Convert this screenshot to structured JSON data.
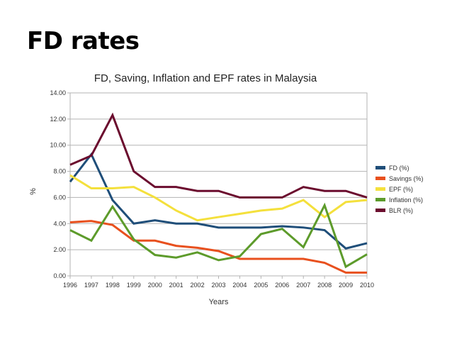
{
  "slide": {
    "title": "FD rates"
  },
  "chart_data": {
    "type": "line",
    "title": "FD, Saving, Inflation and EPF rates in Malaysia",
    "xlabel": "Years",
    "ylabel": "%",
    "ylim": [
      0,
      14
    ],
    "y_step": 2,
    "y_tick_labels": [
      "0.00",
      "2.00",
      "4.00",
      "6.00",
      "8.00",
      "10.00",
      "12.00",
      "14.00"
    ],
    "grid": true,
    "legend_position": "right",
    "categories": [
      "1996",
      "1997",
      "1998",
      "1999",
      "2000",
      "2001",
      "2002",
      "2003",
      "2004",
      "2005",
      "2006",
      "2007",
      "2008",
      "2009",
      "2010"
    ],
    "series": [
      {
        "name": "FD (%)",
        "color": "#1f4e79",
        "values": [
          7.2,
          9.3,
          5.8,
          4.0,
          4.25,
          4.0,
          4.0,
          3.7,
          3.7,
          3.7,
          3.8,
          3.7,
          3.5,
          2.1,
          2.5
        ]
      },
      {
        "name": "Savings (%)",
        "color": "#e8501e",
        "values": [
          4.1,
          4.2,
          3.9,
          2.7,
          2.7,
          2.3,
          2.15,
          1.9,
          1.3,
          1.3,
          1.3,
          1.3,
          1.0,
          0.25,
          0.25
        ]
      },
      {
        "name": "EPF (%)",
        "color": "#f4e03c",
        "values": [
          7.7,
          6.7,
          6.7,
          6.8,
          6.0,
          5.0,
          4.25,
          4.5,
          4.75,
          5.0,
          5.15,
          5.8,
          4.5,
          5.65,
          5.8
        ]
      },
      {
        "name": "Inflation (%)",
        "color": "#5d9b2b",
        "values": [
          3.5,
          2.7,
          5.3,
          2.8,
          1.6,
          1.4,
          1.8,
          1.2,
          1.5,
          3.2,
          3.6,
          2.2,
          5.4,
          0.7,
          1.65
        ]
      },
      {
        "name": "BLR (%)",
        "color": "#6b0c2e",
        "values": [
          8.5,
          9.2,
          12.3,
          8.0,
          6.8,
          6.8,
          6.5,
          6.5,
          6.0,
          6.0,
          6.0,
          6.8,
          6.5,
          6.5,
          6.0
        ]
      }
    ]
  }
}
